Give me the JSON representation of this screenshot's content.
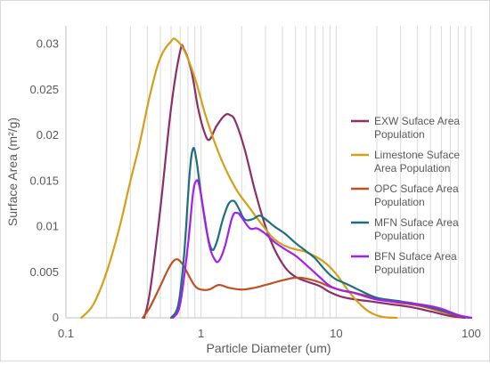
{
  "chart_data": {
    "type": "line",
    "title": "",
    "xlabel": "Particle Diameter (um)",
    "ylabel": "Surface Area (m²/g)",
    "x_scale": "log",
    "xlim": [
      0.1,
      100
    ],
    "ylim": [
      0,
      0.032
    ],
    "x_ticks": [
      {
        "value": 0.1,
        "label": "0.1"
      },
      {
        "value": 1,
        "label": "1"
      },
      {
        "value": 10,
        "label": "10"
      },
      {
        "value": 100,
        "label": "100"
      }
    ],
    "y_ticks": [
      {
        "value": 0,
        "label": "0"
      },
      {
        "value": 0.005,
        "label": "0.005"
      },
      {
        "value": 0.01,
        "label": "0.01"
      },
      {
        "value": 0.015,
        "label": "0.015"
      },
      {
        "value": 0.02,
        "label": "0.02"
      },
      {
        "value": 0.025,
        "label": "0.025"
      },
      {
        "value": 0.03,
        "label": "0.03"
      }
    ],
    "grid": "vertical major and minor gridlines",
    "legend_position": "right",
    "series": [
      {
        "name": "EXW Suface Area Population",
        "color": "#8B2E6A",
        "points": [
          [
            0.38,
            0
          ],
          [
            0.42,
            0.003
          ],
          [
            0.5,
            0.012
          ],
          [
            0.6,
            0.023
          ],
          [
            0.7,
            0.0292
          ],
          [
            0.75,
            0.0294
          ],
          [
            0.85,
            0.027
          ],
          [
            0.95,
            0.023
          ],
          [
            1.05,
            0.0205
          ],
          [
            1.15,
            0.0195
          ],
          [
            1.3,
            0.021
          ],
          [
            1.5,
            0.0222
          ],
          [
            1.65,
            0.0222
          ],
          [
            1.8,
            0.0215
          ],
          [
            2.1,
            0.0185
          ],
          [
            2.5,
            0.014
          ],
          [
            3.0,
            0.01
          ],
          [
            3.5,
            0.0075
          ],
          [
            4.2,
            0.0055
          ],
          [
            5.0,
            0.0045
          ],
          [
            6.0,
            0.004
          ],
          [
            7.5,
            0.0035
          ],
          [
            9.0,
            0.0028
          ],
          [
            11,
            0.0023
          ],
          [
            14,
            0.002
          ],
          [
            18,
            0.0018
          ],
          [
            25,
            0.0015
          ],
          [
            35,
            0.0012
          ],
          [
            50,
            0.0007
          ],
          [
            70,
            0.0002
          ],
          [
            90,
            0
          ]
        ]
      },
      {
        "name": "Limestone Suface Area Population",
        "color": "#D4A017",
        "points": [
          [
            0.13,
            0
          ],
          [
            0.16,
            0.0015
          ],
          [
            0.2,
            0.005
          ],
          [
            0.25,
            0.01
          ],
          [
            0.3,
            0.015
          ],
          [
            0.35,
            0.019
          ],
          [
            0.42,
            0.0245
          ],
          [
            0.5,
            0.0285
          ],
          [
            0.6,
            0.0303
          ],
          [
            0.65,
            0.0305
          ],
          [
            0.75,
            0.0293
          ],
          [
            0.9,
            0.0263
          ],
          [
            1.1,
            0.0218
          ],
          [
            1.4,
            0.0175
          ],
          [
            1.8,
            0.0142
          ],
          [
            2.3,
            0.012
          ],
          [
            2.8,
            0.0103
          ],
          [
            3.5,
            0.0086
          ],
          [
            4.5,
            0.0077
          ],
          [
            6.0,
            0.0072
          ],
          [
            8.0,
            0.0062
          ],
          [
            10,
            0.0048
          ],
          [
            13,
            0.0025
          ],
          [
            17,
            0.0008
          ],
          [
            22,
            0.0001
          ],
          [
            28,
            0
          ]
        ]
      },
      {
        "name": "OPC Suface Area Population",
        "color": "#C0501F",
        "points": [
          [
            0.37,
            0
          ],
          [
            0.42,
            0.0012
          ],
          [
            0.5,
            0.0035
          ],
          [
            0.58,
            0.0055
          ],
          [
            0.65,
            0.0064
          ],
          [
            0.72,
            0.006
          ],
          [
            0.8,
            0.0048
          ],
          [
            0.9,
            0.0035
          ],
          [
            1.0,
            0.0031
          ],
          [
            1.15,
            0.0031
          ],
          [
            1.35,
            0.0036
          ],
          [
            1.6,
            0.0033
          ],
          [
            2.0,
            0.0031
          ],
          [
            2.5,
            0.0033
          ],
          [
            3.0,
            0.0036
          ],
          [
            4.0,
            0.0041
          ],
          [
            5.0,
            0.0044
          ],
          [
            6.0,
            0.0043
          ],
          [
            7.5,
            0.0039
          ],
          [
            9.0,
            0.0034
          ],
          [
            11,
            0.003
          ],
          [
            14,
            0.0027
          ],
          [
            18,
            0.0023
          ],
          [
            25,
            0.0018
          ],
          [
            35,
            0.0015
          ],
          [
            45,
            0.0012
          ],
          [
            60,
            0.0007
          ],
          [
            80,
            0.0002
          ],
          [
            100,
            0
          ]
        ]
      },
      {
        "name": "MFN Suface Area Population",
        "color": "#1F6E7E",
        "points": [
          [
            0.6,
            0
          ],
          [
            0.68,
            0.0015
          ],
          [
            0.75,
            0.007
          ],
          [
            0.82,
            0.0155
          ],
          [
            0.87,
            0.0185
          ],
          [
            0.92,
            0.0175
          ],
          [
            1.0,
            0.0135
          ],
          [
            1.1,
            0.0095
          ],
          [
            1.2,
            0.0075
          ],
          [
            1.3,
            0.0082
          ],
          [
            1.45,
            0.0108
          ],
          [
            1.6,
            0.0125
          ],
          [
            1.75,
            0.0128
          ],
          [
            1.9,
            0.012
          ],
          [
            2.1,
            0.0108
          ],
          [
            2.4,
            0.0108
          ],
          [
            2.7,
            0.0112
          ],
          [
            3.0,
            0.0108
          ],
          [
            3.5,
            0.01
          ],
          [
            4.2,
            0.0092
          ],
          [
            5.0,
            0.0082
          ],
          [
            6.0,
            0.0073
          ],
          [
            7.0,
            0.0065
          ],
          [
            8.0,
            0.0055
          ],
          [
            9.0,
            0.0047
          ],
          [
            10,
            0.0042
          ],
          [
            12,
            0.0037
          ],
          [
            15,
            0.003
          ],
          [
            20,
            0.0022
          ],
          [
            30,
            0.0018
          ],
          [
            40,
            0.0015
          ],
          [
            55,
            0.001
          ],
          [
            75,
            0.0004
          ],
          [
            95,
            0
          ]
        ]
      },
      {
        "name": "BFN Suface Area Population",
        "color": "#A020F0",
        "points": [
          [
            0.62,
            0
          ],
          [
            0.7,
            0.0015
          ],
          [
            0.8,
            0.008
          ],
          [
            0.87,
            0.0135
          ],
          [
            0.92,
            0.015
          ],
          [
            0.97,
            0.0145
          ],
          [
            1.05,
            0.0115
          ],
          [
            1.15,
            0.008
          ],
          [
            1.25,
            0.0065
          ],
          [
            1.35,
            0.0062
          ],
          [
            1.5,
            0.0078
          ],
          [
            1.7,
            0.011
          ],
          [
            1.85,
            0.0115
          ],
          [
            2.0,
            0.011
          ],
          [
            2.3,
            0.0098
          ],
          [
            2.6,
            0.0098
          ],
          [
            3.0,
            0.0092
          ],
          [
            3.5,
            0.0083
          ],
          [
            4.2,
            0.0075
          ],
          [
            5.0,
            0.0068
          ],
          [
            6.0,
            0.0058
          ],
          [
            7.5,
            0.0045
          ],
          [
            9.0,
            0.0035
          ],
          [
            11,
            0.003
          ],
          [
            13,
            0.0028
          ],
          [
            16,
            0.0024
          ],
          [
            20,
            0.002
          ],
          [
            30,
            0.0017
          ],
          [
            45,
            0.0014
          ],
          [
            60,
            0.001
          ],
          [
            80,
            0.0003
          ],
          [
            100,
            0
          ]
        ]
      }
    ]
  }
}
